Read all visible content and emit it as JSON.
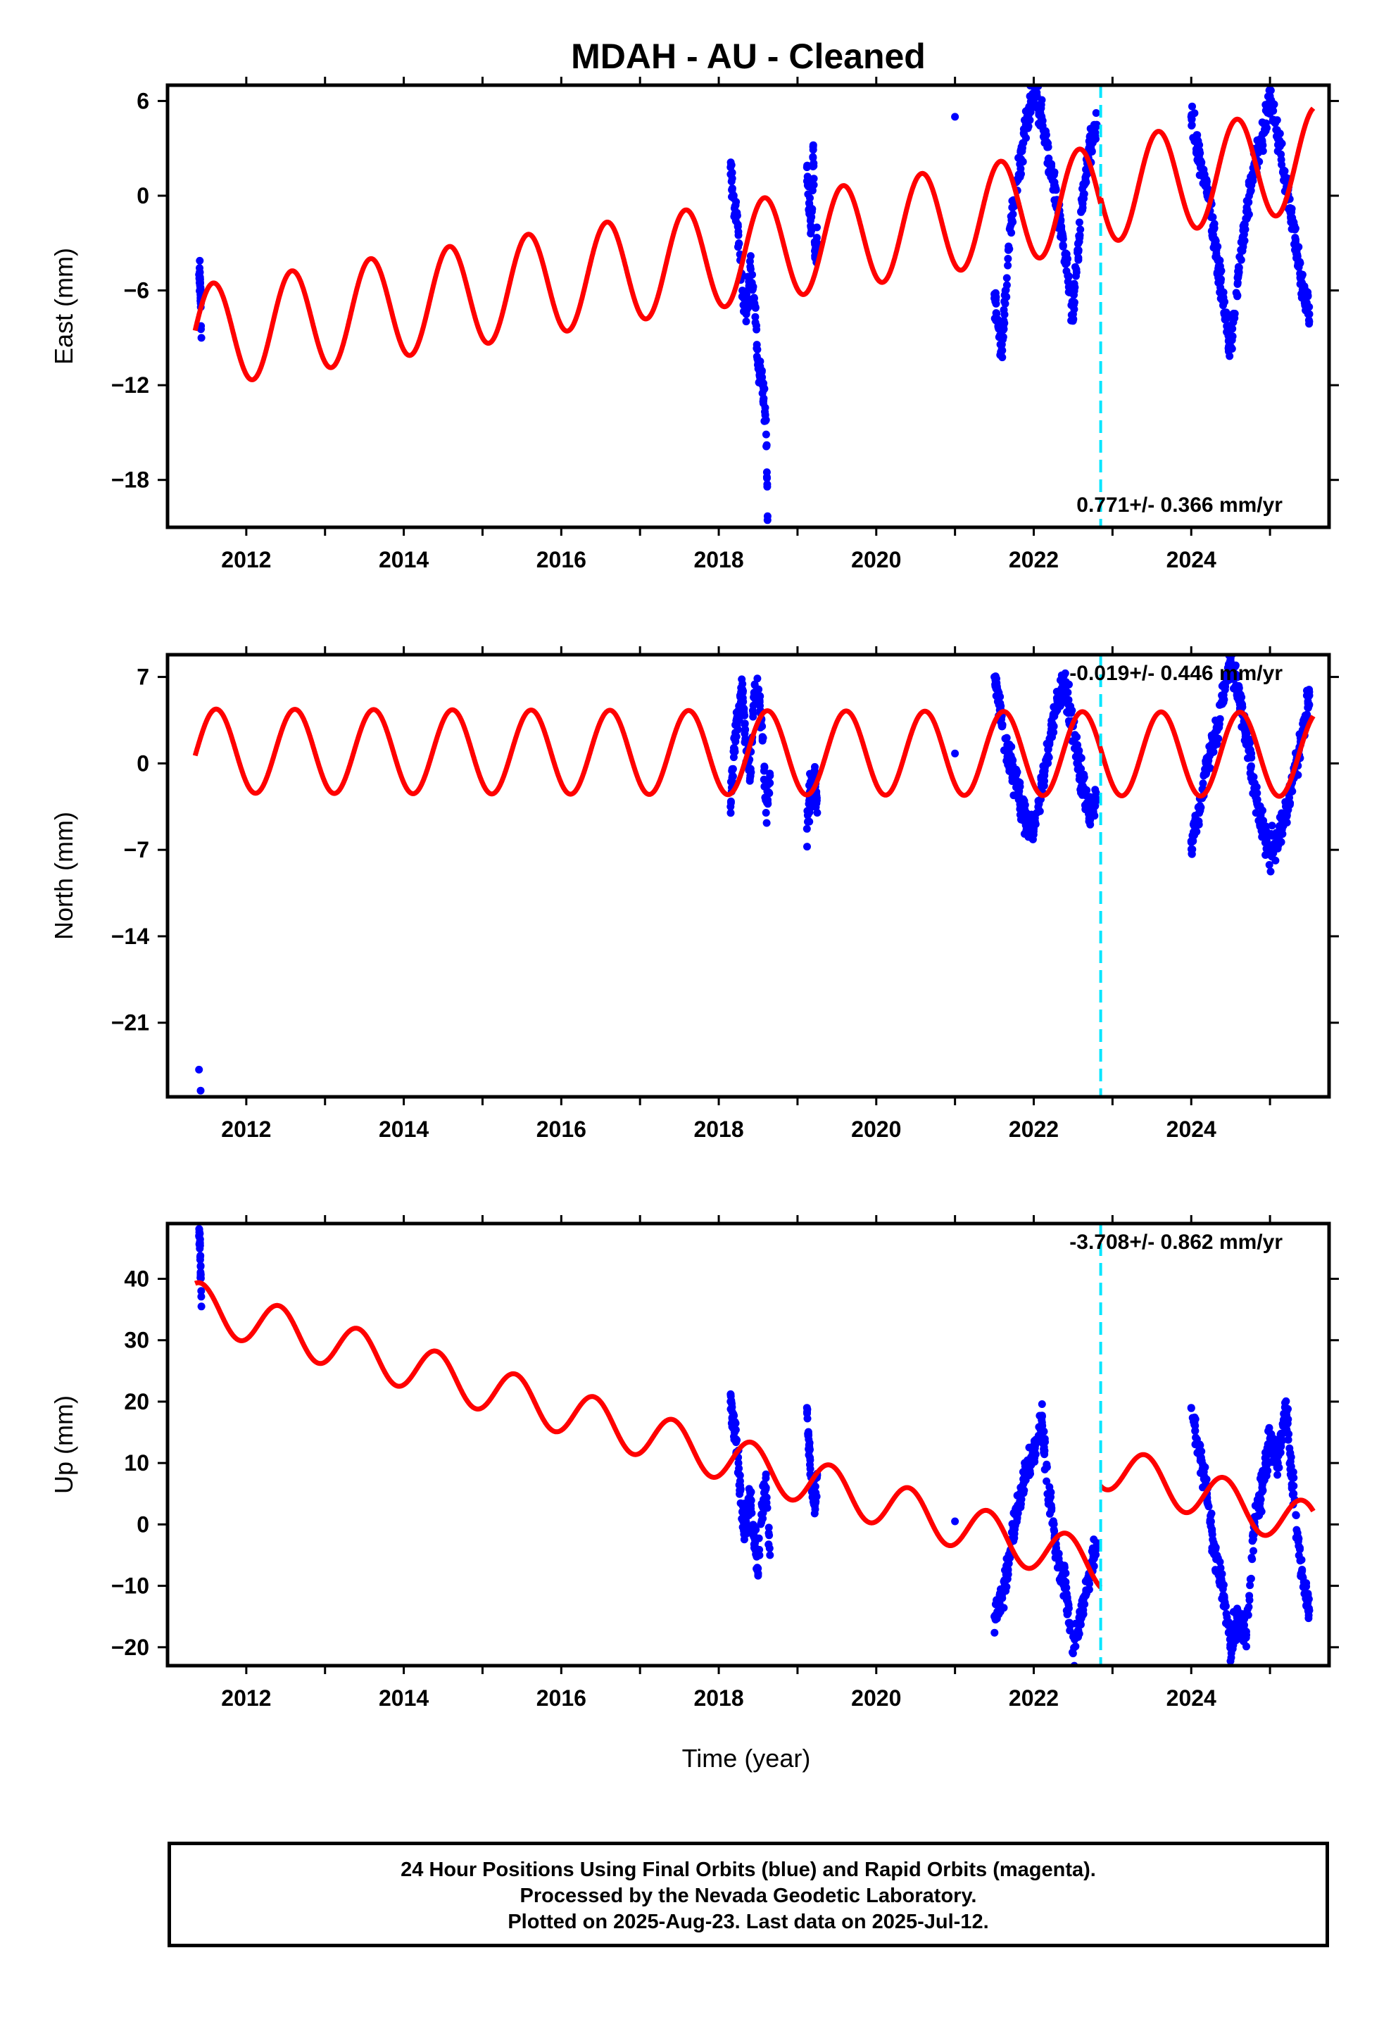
{
  "title": "MDAH  - AU - Cleaned",
  "xlabel": "Time (year)",
  "footer": {
    "line1": "24 Hour Positions Using Final Orbits (blue) and Rapid Orbits (magenta).",
    "line2": "Processed by the Nevada Geodetic Laboratory.",
    "line3": "Plotted on 2025-Aug-23. Last data on 2025-Jul-12."
  },
  "chart_data": [
    {
      "type": "scatter",
      "component": "east",
      "ylabel": "East (mm)",
      "xlim": [
        2011.0,
        2025.75
      ],
      "ylim": [
        -21,
        7.0
      ],
      "yticks": [
        6,
        0,
        -6,
        -12,
        -18
      ],
      "xticks": [
        2012,
        2014,
        2016,
        2018,
        2020,
        2022,
        2024
      ],
      "rate_text": "0.771+/- 0.366 mm/yr",
      "rate_position": "bottom-right",
      "colors": {
        "points": "#0000ff",
        "model": "#ff0000",
        "offset": "#00e5ff"
      },
      "offset_epoch": 2022.85,
      "model": {
        "trend": 0.771,
        "intercept_2011_3": -9.0,
        "amp_sin": 3.2,
        "amp_cos": -0.6,
        "segments": [
          [
            2011.35,
            2022.85,
            0.0
          ],
          [
            2022.85,
            2025.55,
            0.35
          ]
        ]
      },
      "series": [
        {
          "x": [
            2011.4,
            2011.41,
            2011.42,
            2011.43
          ],
          "y": [
            -5.0,
            -5.3,
            -6.4,
            -9.0
          ]
        },
        {
          "x": [
            2018.15,
            2018.2,
            2018.25,
            2018.3,
            2018.35,
            2018.4,
            2018.45,
            2018.5,
            2018.55,
            2018.6,
            2018.62
          ],
          "y": [
            1.8,
            -0.8,
            -2.5,
            -6.0,
            -7.5,
            -4.5,
            -6.5,
            -10.5,
            -11.5,
            -14.2,
            -20.3
          ]
        },
        {
          "x": [
            2019.12,
            2019.15,
            2019.18,
            2019.2,
            2019.22,
            2019.25
          ],
          "y": [
            1.8,
            -1.0,
            -2.0,
            3.2,
            -3.5,
            -3.0
          ]
        },
        {
          "x": [
            2021.0
          ],
          "y": [
            5.0
          ]
        },
        {
          "x": [
            2021.5,
            2021.6,
            2021.7,
            2021.8,
            2021.9,
            2022.0,
            2022.1,
            2022.2,
            2022.3,
            2022.4,
            2022.5,
            2022.6,
            2022.7,
            2022.8
          ],
          "y": [
            -6.5,
            -9.8,
            -2.0,
            1.0,
            4.5,
            6.5,
            5.0,
            2.0,
            -0.5,
            -4.0,
            -7.5,
            -1.0,
            3.0,
            4.5
          ]
        },
        {
          "x": [
            2024.0,
            2024.1,
            2024.2,
            2024.3,
            2024.4,
            2024.5,
            2024.6,
            2024.7,
            2024.8,
            2024.9,
            2025.0,
            2025.1,
            2025.2,
            2025.3,
            2025.4,
            2025.5
          ],
          "y": [
            5.0,
            2.5,
            0.5,
            -3.0,
            -6.5,
            -9.6,
            -5.0,
            -1.0,
            2.0,
            3.5,
            6.3,
            4.0,
            1.0,
            -2.0,
            -5.5,
            -7.5
          ]
        }
      ]
    },
    {
      "type": "scatter",
      "component": "north",
      "ylabel": "North (mm)",
      "xlim": [
        2011.0,
        2025.75
      ],
      "ylim": [
        -27,
        8.8
      ],
      "yticks": [
        7,
        0,
        -7,
        -14,
        -21
      ],
      "xticks": [
        2012,
        2014,
        2016,
        2018,
        2020,
        2022,
        2024
      ],
      "rate_text": "-0.019+/- 0.446 mm/yr",
      "rate_position": "top-right",
      "colors": {
        "points": "#0000ff",
        "model": "#ff0000",
        "offset": "#00e5ff"
      },
      "offset_epoch": 2022.85,
      "model": {
        "trend": -0.019,
        "intercept_2011_3": 1.0,
        "amp_sin": 3.1,
        "amp_cos": -1.4,
        "segments": [
          [
            2011.35,
            2022.85,
            0.0
          ],
          [
            2022.85,
            2025.55,
            0.0
          ]
        ]
      },
      "series": [
        {
          "x": [
            2011.4,
            2011.42
          ],
          "y": [
            -24.8,
            -26.5
          ]
        },
        {
          "x": [
            2018.15,
            2018.2,
            2018.25,
            2018.3,
            2018.35,
            2018.4,
            2018.45,
            2018.5,
            2018.55,
            2018.6,
            2018.65
          ],
          "y": [
            -3.5,
            2.0,
            4.0,
            6.0,
            1.0,
            -1.0,
            5.5,
            6.0,
            3.0,
            -4.0,
            -1.0
          ]
        },
        {
          "x": [
            2019.12,
            2019.15,
            2019.18,
            2019.22,
            2019.25
          ],
          "y": [
            -5.3,
            -3.0,
            -2.0,
            -1.0,
            -4.0
          ]
        },
        {
          "x": [
            2021.0
          ],
          "y": [
            0.8
          ]
        },
        {
          "x": [
            2021.5,
            2021.6,
            2021.7,
            2021.8,
            2021.9,
            2022.0,
            2022.1,
            2022.2,
            2022.3,
            2022.4,
            2022.5,
            2022.6,
            2022.7,
            2022.8
          ],
          "y": [
            7.0,
            3.0,
            0.0,
            -2.0,
            -4.5,
            -5.3,
            -2.0,
            2.0,
            5.0,
            6.0,
            3.0,
            -1.0,
            -4.0,
            -3.0
          ]
        },
        {
          "x": [
            2024.0,
            2024.1,
            2024.2,
            2024.3,
            2024.4,
            2024.5,
            2024.6,
            2024.7,
            2024.8,
            2024.9,
            2025.0,
            2025.1,
            2025.2,
            2025.3,
            2025.4,
            2025.5
          ],
          "y": [
            -6.3,
            -4.0,
            0.0,
            2.0,
            5.0,
            8.5,
            6.0,
            2.0,
            -2.0,
            -5.0,
            -7.2,
            -6.0,
            -4.0,
            -1.0,
            2.0,
            5.5
          ]
        }
      ]
    },
    {
      "type": "scatter",
      "component": "up",
      "ylabel": "Up (mm)",
      "xlim": [
        2011.0,
        2025.75
      ],
      "ylim": [
        -23,
        49
      ],
      "yticks": [
        40,
        30,
        20,
        10,
        0,
        -10,
        -20
      ],
      "xticks": [
        2012,
        2014,
        2016,
        2018,
        2020,
        2022,
        2024
      ],
      "rate_text": "-3.708+/- 0.862 mm/yr",
      "rate_position": "top-right",
      "colors": {
        "points": "#0000ff",
        "model": "#ff0000",
        "offset": "#00e5ff"
      },
      "offset_epoch": 2022.85,
      "model": {
        "trend": -3.708,
        "intercept_2011_3": 36.0,
        "amp_sin": 2.5,
        "amp_cos": 2.8,
        "segments": [
          [
            2011.35,
            2022.85,
            0.0
          ],
          [
            2022.85,
            2025.55,
            16.5
          ]
        ]
      },
      "series": [
        {
          "x": [
            2011.4,
            2011.41,
            2011.42,
            2011.43
          ],
          "y": [
            47.0,
            46.0,
            42.0,
            35.5
          ]
        },
        {
          "x": [
            2018.15,
            2018.2,
            2018.25,
            2018.3,
            2018.35,
            2018.4,
            2018.45,
            2018.5,
            2018.55,
            2018.6,
            2018.65
          ],
          "y": [
            20.0,
            15.0,
            10.0,
            2.0,
            0.0,
            5.0,
            -2.0,
            -8.0,
            3.0,
            6.0,
            -5.0
          ]
        },
        {
          "x": [
            2019.12,
            2019.15,
            2019.18,
            2019.22,
            2019.25
          ],
          "y": [
            19.0,
            12.0,
            6.0,
            3.0,
            8.0
          ]
        },
        {
          "x": [
            2021.0
          ],
          "y": [
            0.5
          ]
        },
        {
          "x": [
            2021.5,
            2021.6,
            2021.7,
            2021.8,
            2021.9,
            2022.0,
            2022.1,
            2022.2,
            2022.3,
            2022.4,
            2022.5,
            2022.6,
            2022.7,
            2022.8
          ],
          "y": [
            -15.0,
            -12.0,
            -5.0,
            3.0,
            8.0,
            12.0,
            17.0,
            4.0,
            -5.0,
            -10.0,
            -21.0,
            -15.0,
            -8.0,
            -3.0
          ]
        },
        {
          "x": [
            2024.0,
            2024.1,
            2024.2,
            2024.3,
            2024.4,
            2024.5,
            2024.6,
            2024.7,
            2024.8,
            2024.9,
            2025.0,
            2025.1,
            2025.2,
            2025.3,
            2025.4,
            2025.5
          ],
          "y": [
            19.0,
            12.0,
            5.0,
            -5.0,
            -10.0,
            -20.0,
            -15.0,
            -18.0,
            0.0,
            6.0,
            14.0,
            10.0,
            19.0,
            5.0,
            -8.0,
            -14.0
          ]
        }
      ]
    }
  ]
}
